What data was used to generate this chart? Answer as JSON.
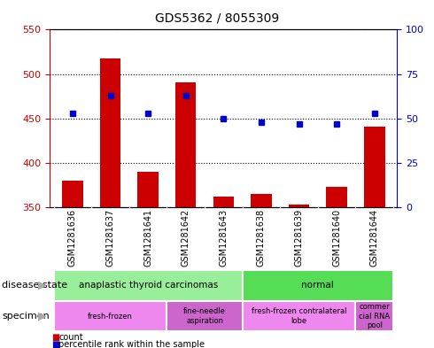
{
  "title": "GDS5362 / 8055309",
  "samples": [
    "GSM1281636",
    "GSM1281637",
    "GSM1281641",
    "GSM1281642",
    "GSM1281643",
    "GSM1281638",
    "GSM1281639",
    "GSM1281640",
    "GSM1281644"
  ],
  "counts": [
    380,
    517,
    390,
    491,
    362,
    365,
    353,
    373,
    441
  ],
  "percentiles": [
    53,
    63,
    53,
    63,
    50,
    48,
    47,
    47,
    53
  ],
  "ylim_left": [
    350,
    550
  ],
  "ylim_right": [
    0,
    100
  ],
  "yticks_left": [
    350,
    400,
    450,
    500,
    550
  ],
  "yticks_right": [
    0,
    25,
    50,
    75,
    100
  ],
  "bar_color": "#cc0000",
  "dot_color": "#0000cc",
  "disease_state_groups": [
    {
      "label": "anaplastic thyroid carcinomas",
      "start": 0,
      "end": 5,
      "color": "#99ee99"
    },
    {
      "label": "normal",
      "start": 5,
      "end": 9,
      "color": "#55dd55"
    }
  ],
  "specimen_groups": [
    {
      "label": "fresh-frozen",
      "start": 0,
      "end": 3,
      "color": "#ee88ee"
    },
    {
      "label": "fine-needle\naspiration",
      "start": 3,
      "end": 5,
      "color": "#cc66cc"
    },
    {
      "label": "fresh-frozen contralateral\nlobe",
      "start": 5,
      "end": 8,
      "color": "#ee88ee"
    },
    {
      "label": "commer\ncial RNA\npool",
      "start": 8,
      "end": 9,
      "color": "#cc66cc"
    }
  ],
  "sample_bg_color": "#c8c8c8",
  "sample_sep_color": "#ffffff",
  "legend_items": [
    {
      "label": "count",
      "color": "#cc0000"
    },
    {
      "label": "percentile rank within the sample",
      "color": "#0000cc"
    }
  ],
  "arrow_color": "#aaaaaa",
  "label_fontsize": 8,
  "tick_fontsize": 8,
  "sample_fontsize": 7,
  "anno_fontsize": 7.5
}
